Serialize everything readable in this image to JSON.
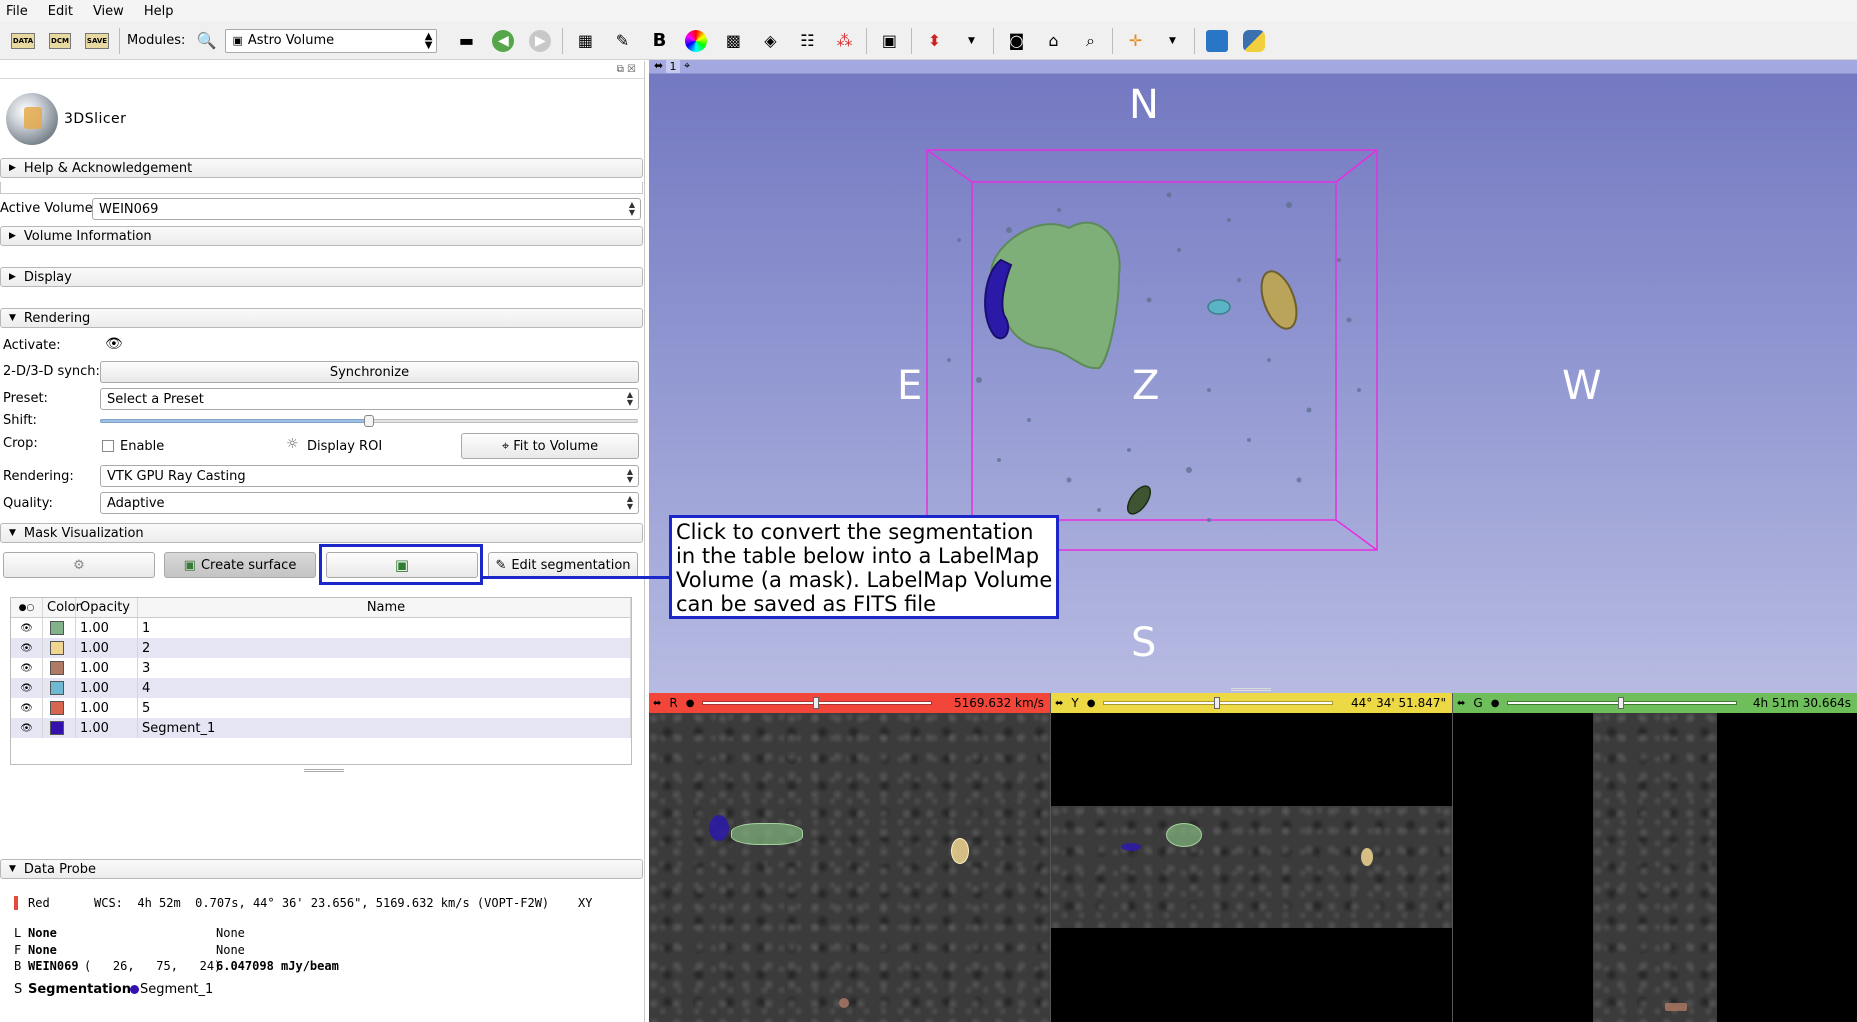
{
  "menu": [
    "File",
    "Edit",
    "View",
    "Help"
  ],
  "toolbar": {
    "modules_label": "Modules:",
    "module_selected": "Astro Volume",
    "load_data": "DATA",
    "load_dcm": "DCM",
    "save": "SAVE"
  },
  "panel": {
    "logo_text": "3DSlicer",
    "help_section": "Help & Acknowledgement",
    "active_volume_label": "Active Volume",
    "active_volume_value": "WEIN069",
    "volume_info_section": "Volume Information",
    "display_section": "Display",
    "rendering_section": "Rendering",
    "activate_label": "Activate:",
    "synch_label": "2-D/3-D synch:",
    "synchronize_button": "Synchronize",
    "preset_label": "Preset:",
    "preset_value": "Select a Preset",
    "shift_label": "Shift:",
    "shift_level": 0.5,
    "crop_label": "Crop:",
    "enable_label": "Enable",
    "display_roi_label": "Display ROI",
    "fit_to_volume_button": "Fit to Volume",
    "rendering_label": "Rendering:",
    "rendering_value": "VTK GPU Ray Casting",
    "quality_label": "Quality:",
    "quality_value": "Adaptive",
    "mask_section": "Mask Visualization",
    "create_surface_button": "Create surface",
    "edit_segmentation_button": "Edit segmentation"
  },
  "segments": {
    "headers": [
      "Color",
      "Opacity",
      "Name"
    ],
    "rows": [
      {
        "color": "#83b38a",
        "opacity": "1.00",
        "name": "1"
      },
      {
        "color": "#f1d691",
        "opacity": "1.00",
        "name": "2"
      },
      {
        "color": "#b17a65",
        "opacity": "1.00",
        "name": "3"
      },
      {
        "color": "#6fb8d2",
        "opacity": "1.00",
        "name": "4"
      },
      {
        "color": "#d8654f",
        "opacity": "1.00",
        "name": "5"
      },
      {
        "color": "#3311b0",
        "opacity": "1.00",
        "name": "Segment_1"
      }
    ]
  },
  "probe": {
    "section": "Data Probe",
    "view": "Red",
    "wcs": "WCS:  4h 52m  0.707s, 44° 36' 23.656\", 5169.632 km/s (VOPT-F2W)    XY",
    "l_key": "L",
    "l_value": "None",
    "l_value2": "None",
    "f_key": "F",
    "f_value": "None",
    "f_value2": "None",
    "b_key": "B",
    "b_name": "WEIN069",
    "b_coords": "(   26,   75,   24)",
    "b_value": "6.047098 mJy/beam",
    "s_key": "S",
    "s_label": "Segmentation:",
    "s_value": "Segment_1"
  },
  "view3d": {
    "index": "1",
    "north": "N",
    "south": "S",
    "east": "E",
    "west": "W",
    "z": "Z"
  },
  "slices": {
    "red": {
      "letter": "R",
      "value": "5169.632 km/s",
      "color": "#f3463b",
      "slider": 0.49
    },
    "yellow": {
      "letter": "Y",
      "value": "44° 34' 51.847\"",
      "color": "#ecd945",
      "slider": 0.49
    },
    "green": {
      "letter": "G",
      "value": "4h 51m 30.664s",
      "color": "#6ebe5c",
      "slider": 0.49
    }
  },
  "callout": "Click to convert the segmentation in the table below into a LabelMap Volume (a mask). LabelMap Volume can be saved as FITS file"
}
